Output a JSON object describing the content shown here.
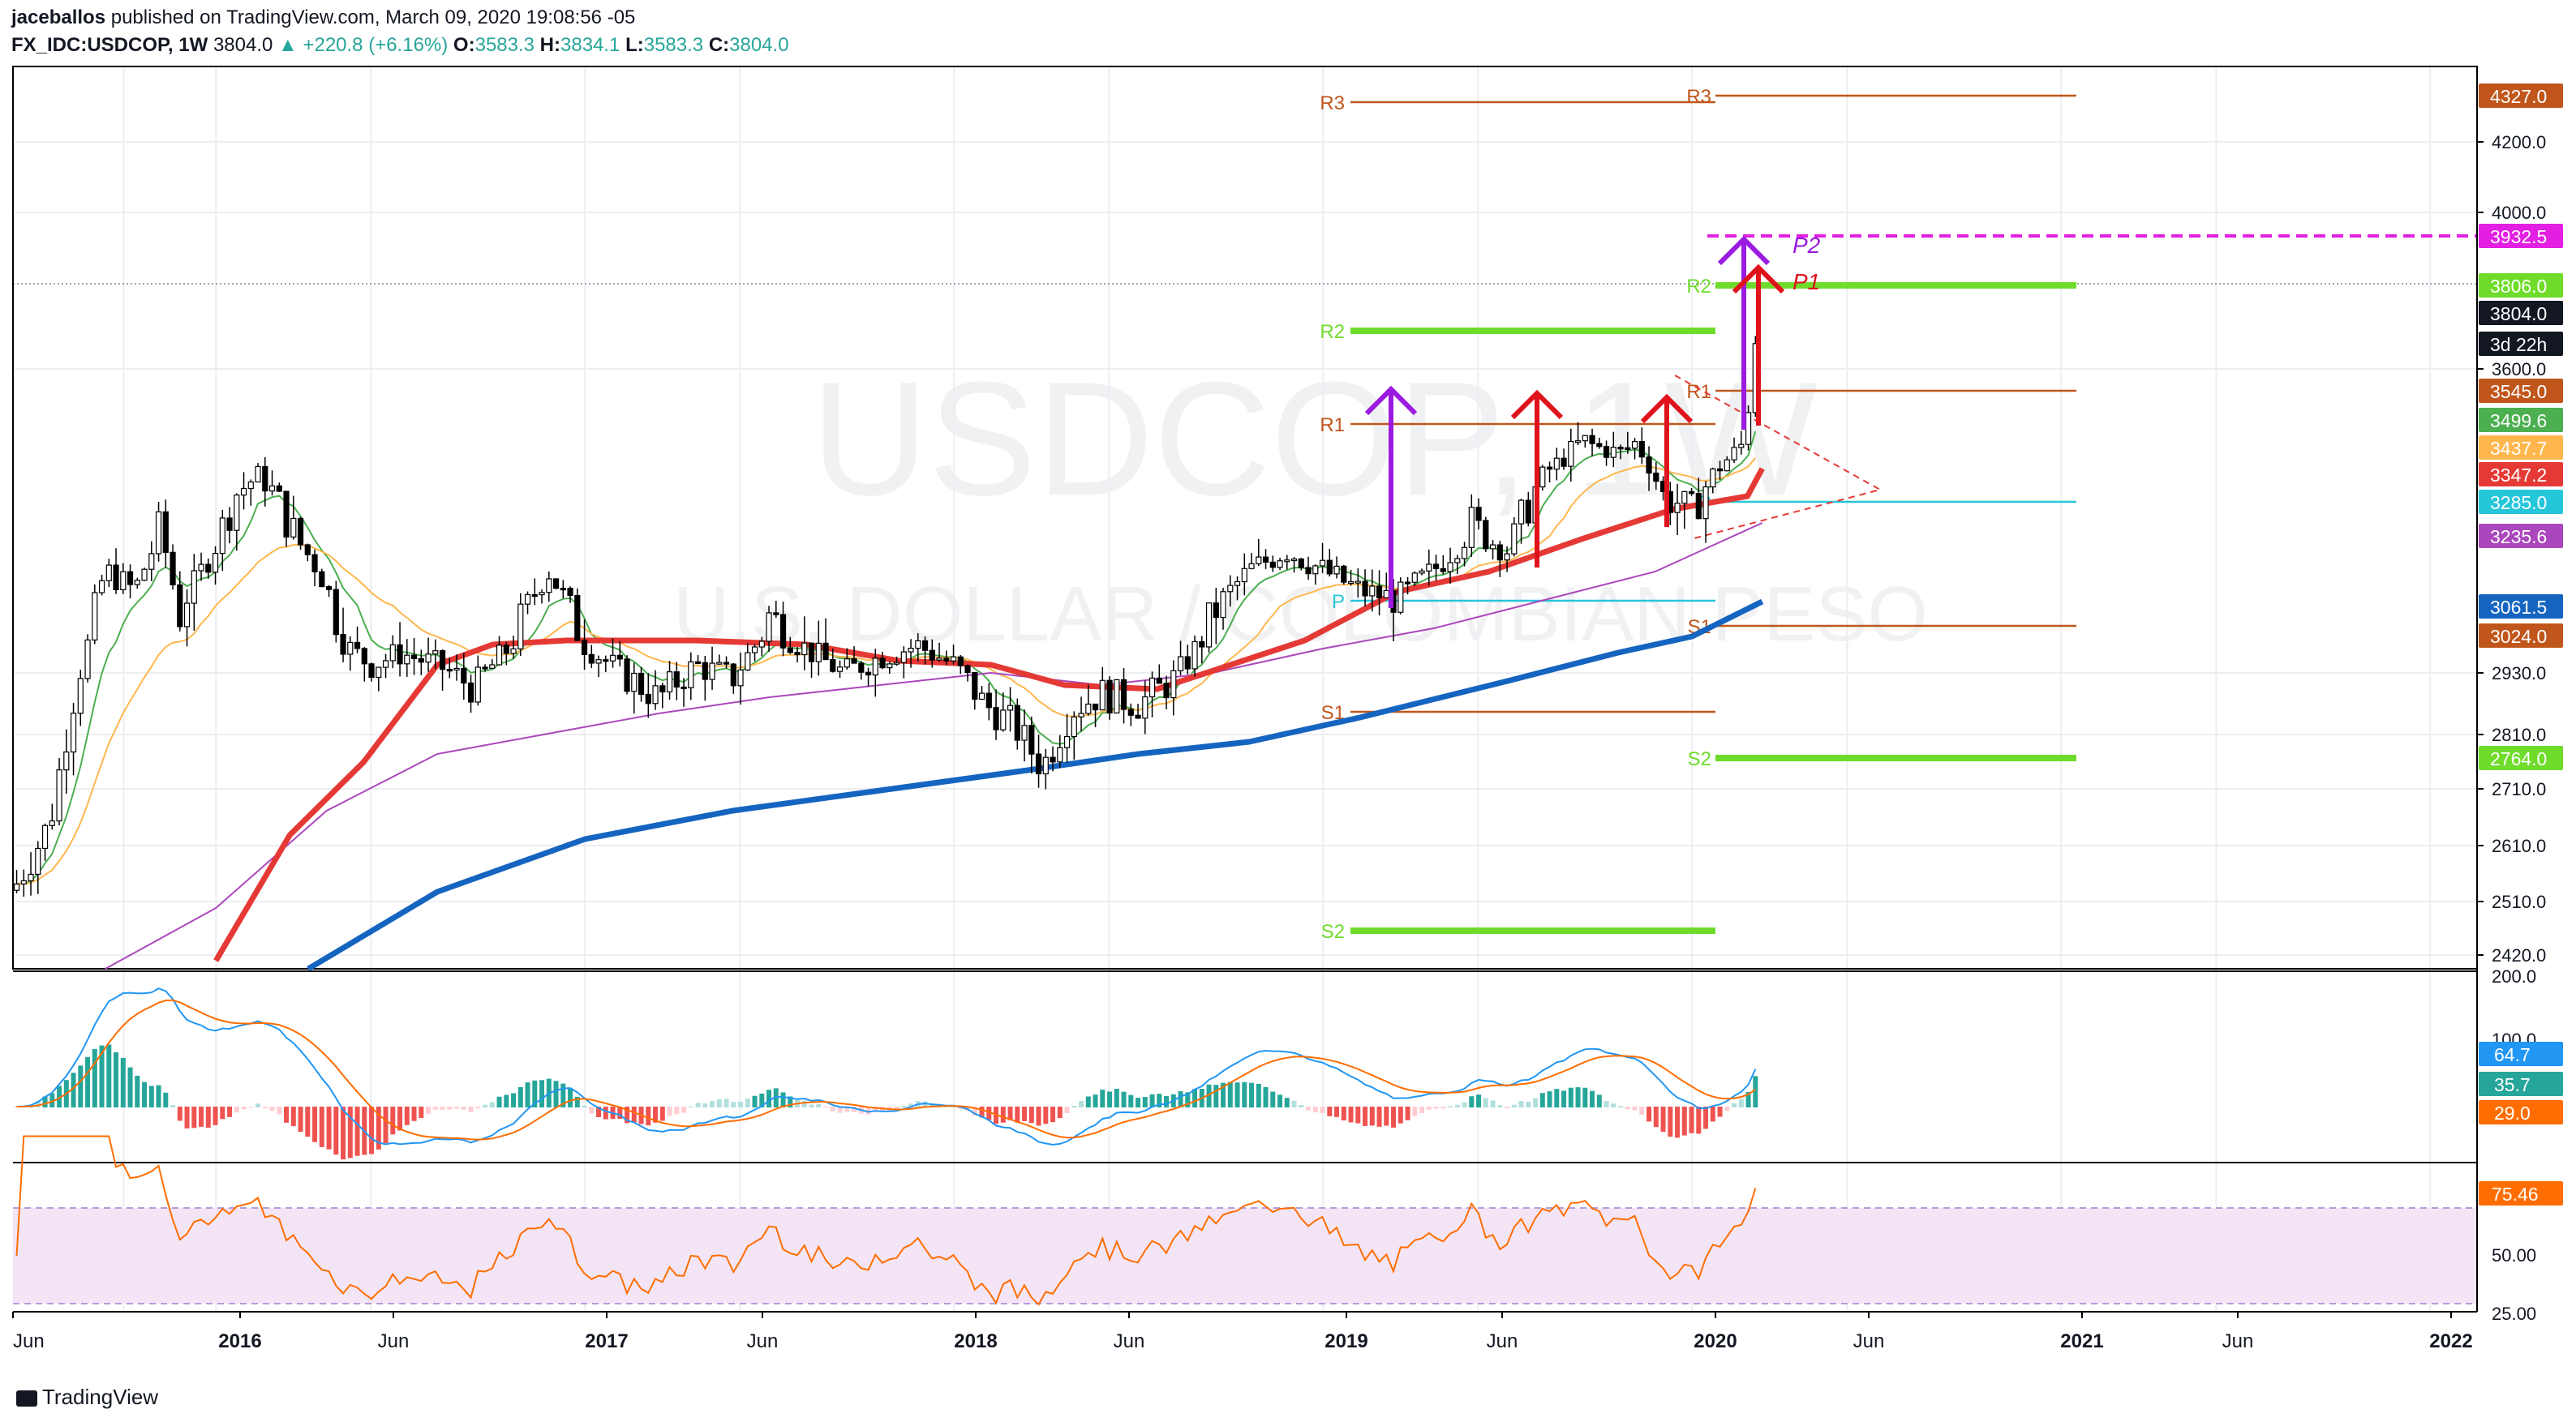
{
  "header": {
    "author": "jaceballos",
    "published": "published on TradingView.com, March 09, 2020 19:08:56 -05",
    "symbol": "FX_IDC:USDCOP, 1W",
    "last": "3804.0",
    "change": "+220.8 (+6.16%)",
    "o_label": "O:",
    "o": "3583.3",
    "h_label": "H:",
    "h": "3834.1",
    "l_label": "L:",
    "l": "3583.3",
    "c_label": "C:",
    "c": "3804.0"
  },
  "watermark": {
    "line1": "USDCOP, 1W",
    "line2": "U.S. DOLLAR / COLOMBIAN PESO"
  },
  "footer": {
    "brand": "TradingView"
  },
  "colors": {
    "green_candle": "#26a69a",
    "red_candle": "#ef5350",
    "ema_fast": "#4caf50",
    "ema_mid": "#ffb74d",
    "ema_red": "#e53935",
    "sma_purple": "#ab47bc",
    "sma_blue": "#1565c0",
    "pivot_orange": "#c0561b",
    "pivot_green": "#6fdc2b",
    "pivot_cyan": "#26c6da",
    "magenta": "#e21fe2",
    "arrow_purple": "#9b1be0",
    "arrow_red": "#e0121b"
  },
  "chart_data": [
    {
      "type": "line",
      "title": "USDCOP, 1W",
      "subtitle": "U.S. DOLLAR / COLOMBIAN PESO",
      "x_ticks": [
        "Jun",
        "2016",
        "Jun",
        "2017",
        "Jun",
        "2018",
        "Jun",
        "2019",
        "Jun",
        "2020",
        "Jun",
        "2021",
        "Jun",
        "2022"
      ],
      "y_ticks": [
        "4200.0",
        "4000.0",
        "3600.0",
        "2930.0",
        "2810.0",
        "2710.0",
        "2610.0",
        "2510.0",
        "2420.0"
      ],
      "price_labels": [
        {
          "value": "4327.0",
          "color": "#c0561b"
        },
        {
          "value": "3932.5",
          "color": "#e21fe2"
        },
        {
          "value": "3806.0",
          "color": "#6fdc2b"
        },
        {
          "value": "3804.0",
          "color": "#131722"
        },
        {
          "value": "3d 22h",
          "color": "#131722"
        },
        {
          "value": "3545.0",
          "color": "#c0561b"
        },
        {
          "value": "3499.6",
          "color": "#4caf50"
        },
        {
          "value": "3437.7",
          "color": "#ffb74d"
        },
        {
          "value": "3347.2",
          "color": "#e53935"
        },
        {
          "value": "3285.0",
          "color": "#26c6da"
        },
        {
          "value": "3235.6",
          "color": "#ab47bc"
        },
        {
          "value": "3061.5",
          "color": "#1565c0"
        },
        {
          "value": "3024.0",
          "color": "#c0561b"
        },
        {
          "value": "2764.0",
          "color": "#6fdc2b"
        }
      ],
      "pivot_levels_2019": [
        {
          "label": "R3",
          "value": 4300
        },
        {
          "label": "R2",
          "value": 3690
        },
        {
          "label": "R1",
          "value": 3420
        },
        {
          "label": "P",
          "value": 3045
        },
        {
          "label": "S1",
          "value": 2845
        },
        {
          "label": "S2",
          "value": 2450
        }
      ],
      "pivot_levels_2020": [
        {
          "label": "R3",
          "value": 4327.0
        },
        {
          "label": "R2",
          "value": 3806.0
        },
        {
          "label": "R1",
          "value": 3545.0
        },
        {
          "label": "P",
          "value": 3285.0
        },
        {
          "label": "S1",
          "value": 3024.0
        },
        {
          "label": "S2",
          "value": 2764.0
        }
      ],
      "annotations": [
        "P2",
        "P1"
      ],
      "target_level": 3932.5
    },
    {
      "type": "line",
      "title": "MACD",
      "y_ticks": [
        "200.0",
        "100.0"
      ],
      "price_labels": [
        {
          "value": "64.7",
          "color": "#2196f3"
        },
        {
          "value": "35.7",
          "color": "#26a69a"
        },
        {
          "value": "29.0",
          "color": "#ff6d00"
        }
      ]
    },
    {
      "type": "line",
      "title": "RSI",
      "y_ticks": [
        "50.00",
        "25.00"
      ],
      "levels": [
        70,
        30
      ],
      "price_labels": [
        {
          "value": "75.46",
          "color": "#ff6d00"
        }
      ]
    }
  ]
}
